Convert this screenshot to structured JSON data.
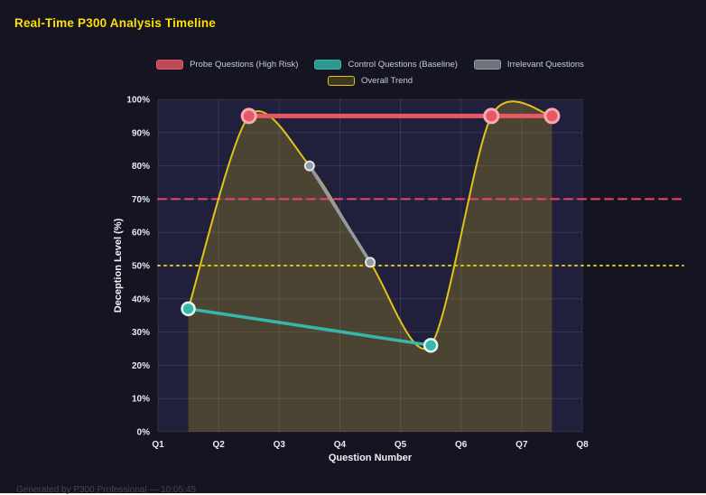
{
  "title": "Real-Time P300 Analysis Timeline",
  "footer": "Generated by P300 Professional — 10:05:45",
  "colors": {
    "page_bg": "#141422",
    "plot_bg": "#20203c",
    "grid": "rgba(255,255,255,0.10)",
    "title_text": "#ffdf00",
    "tick_text": "#e9e9f0",
    "axis_title_text": "#f0f0f5",
    "legend_text": "#c9cdd3",
    "footer_text": "#45454f"
  },
  "chart_data": {
    "type": "line",
    "title": "Real-Time P300 Analysis Timeline",
    "xlabel": "Question Number",
    "ylabel": "Deception Level (%)",
    "xlim": [
      1,
      8
    ],
    "ylim": [
      0,
      100
    ],
    "x_ticks": [
      "Q1",
      "Q2",
      "Q3",
      "Q4",
      "Q5",
      "Q6",
      "Q7",
      "Q8"
    ],
    "x_values": [
      1,
      2,
      3,
      4,
      5,
      6,
      7,
      8
    ],
    "y_ticks": [
      "0%",
      "10%",
      "20%",
      "30%",
      "40%",
      "50%",
      "60%",
      "70%",
      "80%",
      "90%",
      "100%"
    ],
    "y_tick_values": [
      0,
      10,
      20,
      30,
      40,
      50,
      60,
      70,
      80,
      90,
      100
    ],
    "grid": true,
    "legend_position": "top",
    "series": [
      {
        "id": "probe",
        "name": "Probe Questions (High Risk)",
        "color": "#e65964",
        "point_border": "#f5aab4",
        "swatch_alpha": "cc",
        "points": [
          [
            2.5,
            95
          ],
          [
            6.5,
            95
          ],
          [
            7.5,
            95
          ]
        ]
      },
      {
        "id": "control",
        "name": "Control Questions (Baseline)",
        "color": "#35b8ab",
        "point_border": "#e6f7f5",
        "swatch_alpha": "cc",
        "points": [
          [
            1.5,
            37
          ],
          [
            5.5,
            26
          ]
        ]
      },
      {
        "id": "irrelevant",
        "name": "Irrelevant Questions",
        "color": "#939aa1",
        "point_border": "#e0e3e6",
        "swatch_alpha": "b3",
        "points": [
          [
            3.5,
            80
          ],
          [
            4.5,
            51
          ]
        ]
      },
      {
        "id": "trend",
        "name": "Overall Trend",
        "color": "#e2c318",
        "swatch_alpha": "33",
        "smooth": true,
        "area_fill": true,
        "points": [
          [
            1.5,
            37
          ],
          [
            2.5,
            95
          ],
          [
            3.5,
            80
          ],
          [
            4.5,
            51
          ],
          [
            5.5,
            26
          ],
          [
            6.5,
            95
          ],
          [
            7.5,
            95
          ]
        ]
      }
    ],
    "thresholds": [
      {
        "name": "high-risk-threshold-line",
        "value": 70,
        "color": "#f0436e",
        "style": "dashed"
      },
      {
        "name": "baseline-threshold-line",
        "value": 50,
        "color": "#e2c318",
        "style": "dotted"
      }
    ]
  }
}
